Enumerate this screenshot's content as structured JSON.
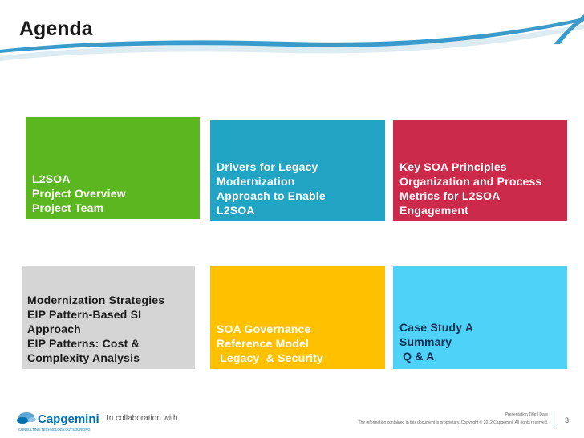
{
  "slide": {
    "title": "Agenda",
    "tiles": [
      {
        "id": "tile-green",
        "color": "#5cb61f",
        "text_color": "#ffffff",
        "lines": [
          "L2SOA",
          "Project Overview",
          "Project Team"
        ]
      },
      {
        "id": "tile-teal",
        "color": "#22a4c5",
        "text_color": "#ffffff",
        "lines": [
          "Drivers for Legacy",
          "Modernization",
          "Approach to Enable",
          "L2SOA"
        ]
      },
      {
        "id": "tile-red",
        "color": "#cc2a4a",
        "text_color": "#ffffff",
        "lines": [
          "Key SOA Principles",
          "Organization and Process",
          "Metrics for L2SOA",
          "Engagement"
        ]
      },
      {
        "id": "tile-grey",
        "color": "#d5d5d5",
        "text_color": "#1a1a1a",
        "lines": [
          "Modernization Strategies",
          "EIP Pattern-Based SI",
          "Approach",
          "EIP Patterns: Cost &",
          "Complexity Analysis"
        ]
      },
      {
        "id": "tile-yellow",
        "color": "#ffc000",
        "text_color": "#ffffff",
        "lines": [
          "SOA Governance",
          "Reference Model",
          " Legacy  & Security"
        ]
      },
      {
        "id": "tile-cyan",
        "color": "#4fd2f8",
        "text_color": "#0a2d52",
        "lines": [
          "Case Study A",
          "Summary",
          " Q & A"
        ]
      }
    ]
  },
  "footer": {
    "logo_text": "Capgemini",
    "logo_tagline": "CONSULTING.TECHNOLOGY.OUTSOURCING",
    "collaboration": "In collaboration with",
    "presentation_title": "Presentation Title | Date",
    "disclaimer": "The information contained in this document is proprietary. Copyright © 2012 Capgemini. All rights reserved.",
    "page_number": "3"
  },
  "colors": {
    "accent_swoosh": "#3a9ac9",
    "logo_blue": "#0070ad"
  }
}
